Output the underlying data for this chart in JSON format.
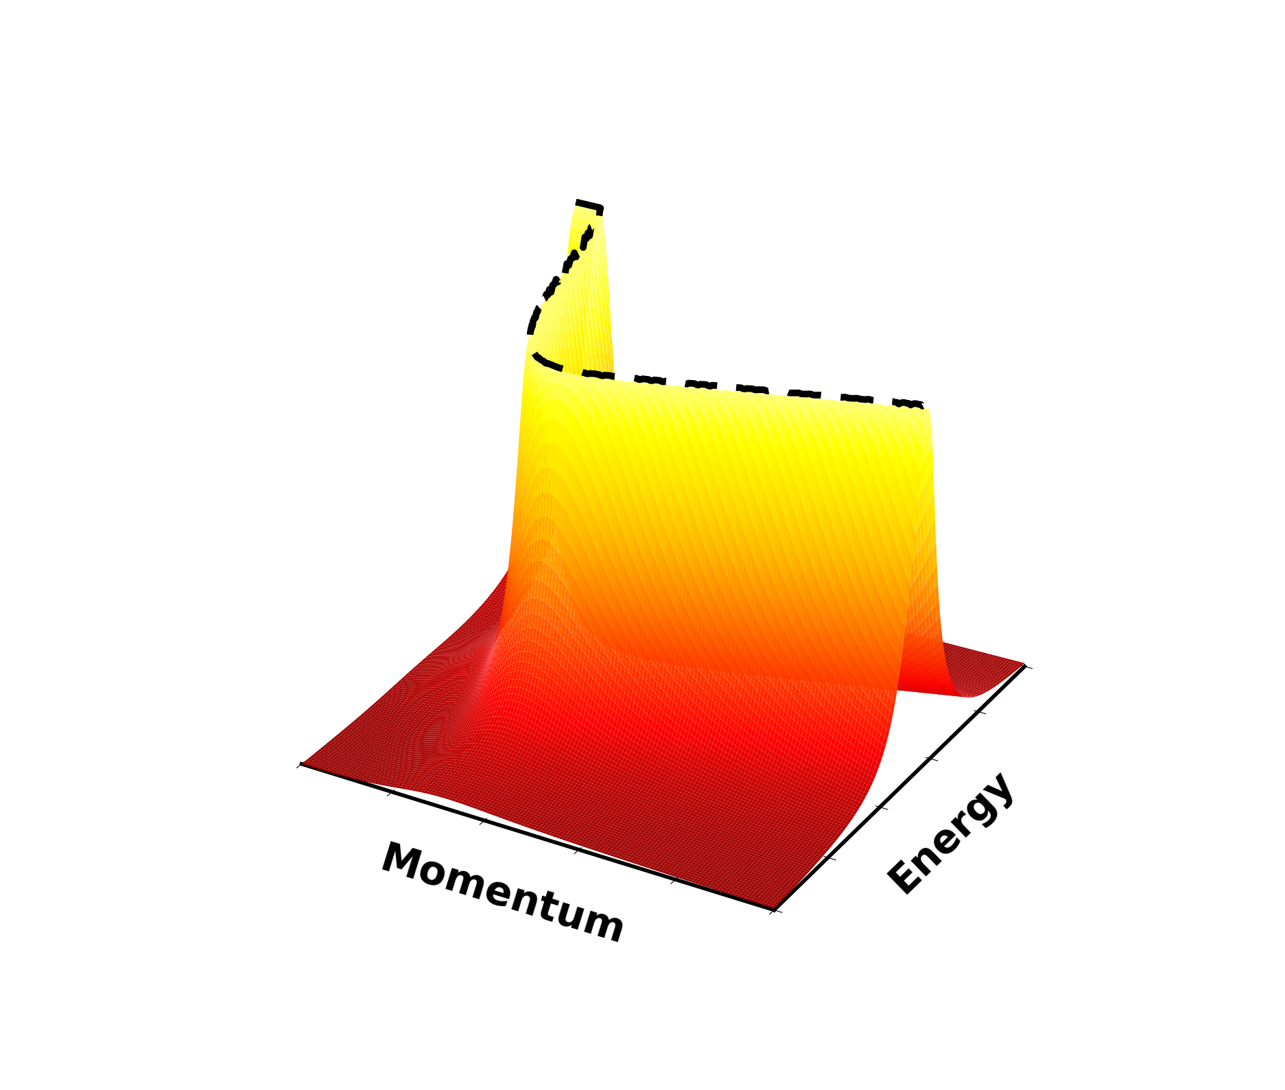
{
  "title": "",
  "xlabel": "Momentum",
  "ylabel": "Energy",
  "background_color": "#ffffff",
  "figsize": [
    18.73,
    15.89
  ],
  "dpi": 100,
  "elev": 28,
  "azim": -60,
  "xlabel_fontsize": 42,
  "ylabel_fontsize": 42,
  "xlabel_fontweight": "bold",
  "ylabel_fontweight": "bold",
  "nx": 150,
  "ny": 150,
  "dash_linewidth": 7
}
